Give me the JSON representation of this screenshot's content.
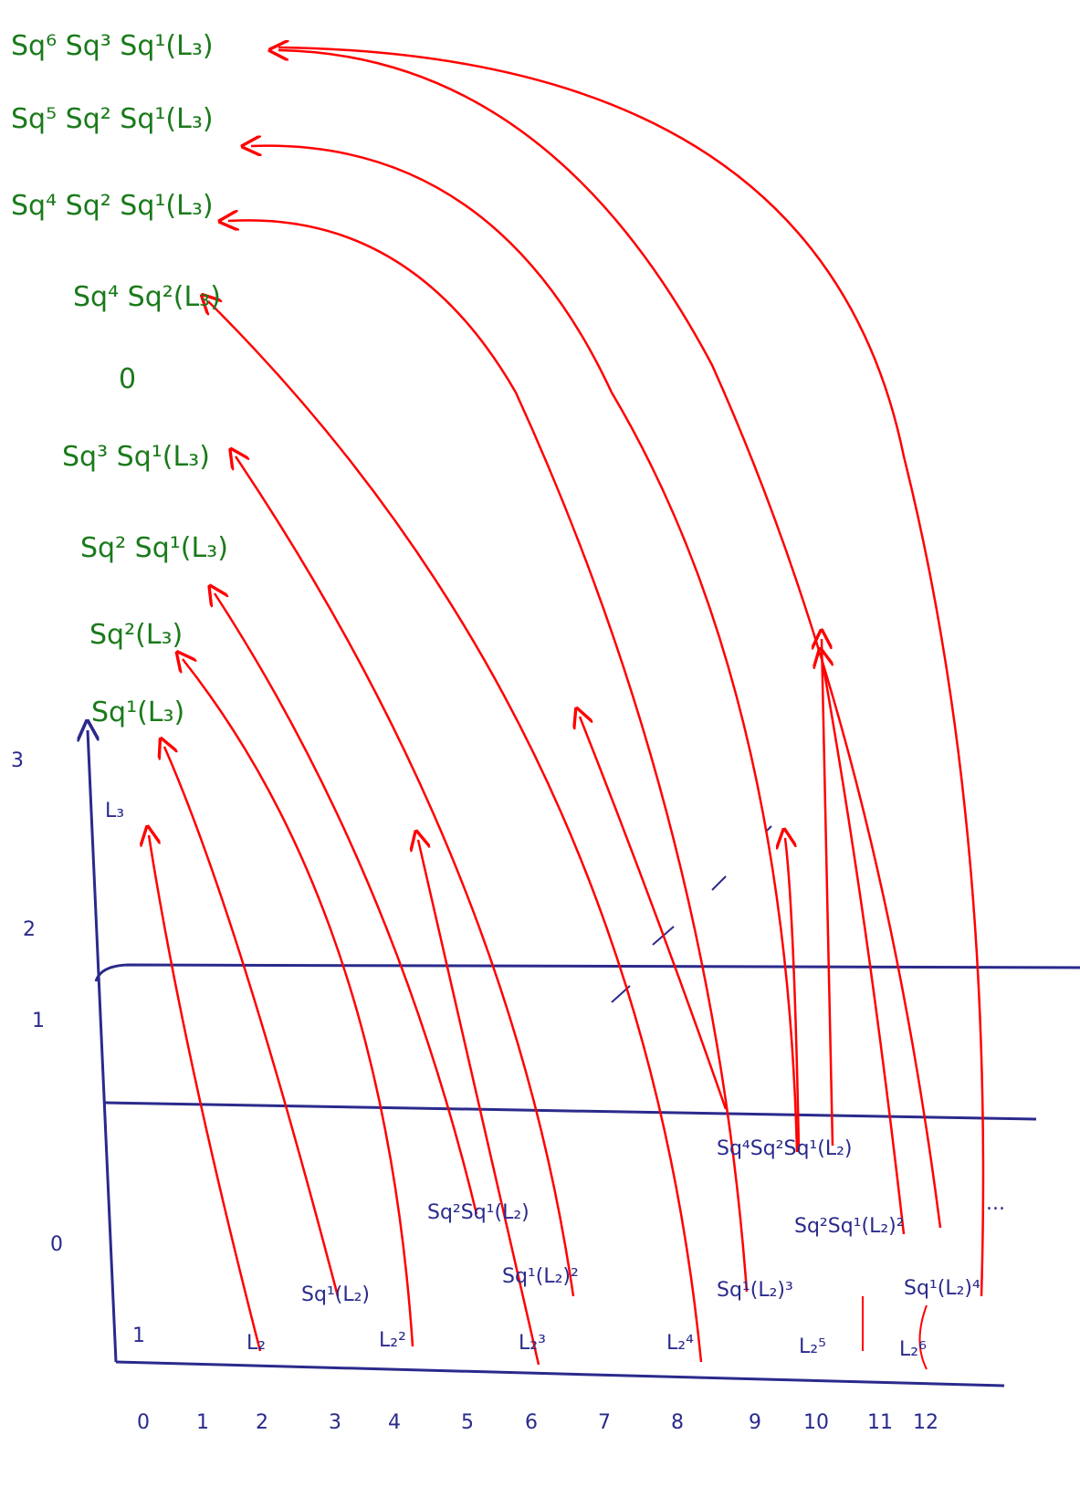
{
  "targets": [
    "Sq⁶ Sq³ Sq¹(L₃)",
    "Sq⁵ Sq² Sq¹(L₃)",
    "Sq⁴ Sq² Sq¹(L₃)",
    "Sq⁴ Sq²(L₃)",
    "0",
    "Sq³ Sq¹(L₃)",
    "Sq² Sq¹(L₃)",
    "Sq²(L₃)",
    "Sq¹(L₃)"
  ],
  "l3": "L₃",
  "y_labels": [
    "0",
    "1",
    "2",
    "3"
  ],
  "x_labels": [
    "0",
    "1",
    "2",
    "3",
    "4",
    "5",
    "6",
    "7",
    "8",
    "9",
    "10",
    "11",
    "12"
  ],
  "row0": [
    "1",
    "L₂",
    "L₂²",
    "L₂³",
    "L₂⁴",
    "L₂⁵",
    "L₂⁶"
  ],
  "row1": [
    "Sq¹(L₂)",
    "Sq¹(L₂)²",
    "Sq¹(L₂)³",
    "Sq¹(L₂)⁴"
  ],
  "row2": [
    "Sq²Sq¹(L₂)",
    "Sq²Sq¹(L₂)²",
    "Sq⁴Sq²Sq¹(L₂)"
  ],
  "ellipsis": "..."
}
